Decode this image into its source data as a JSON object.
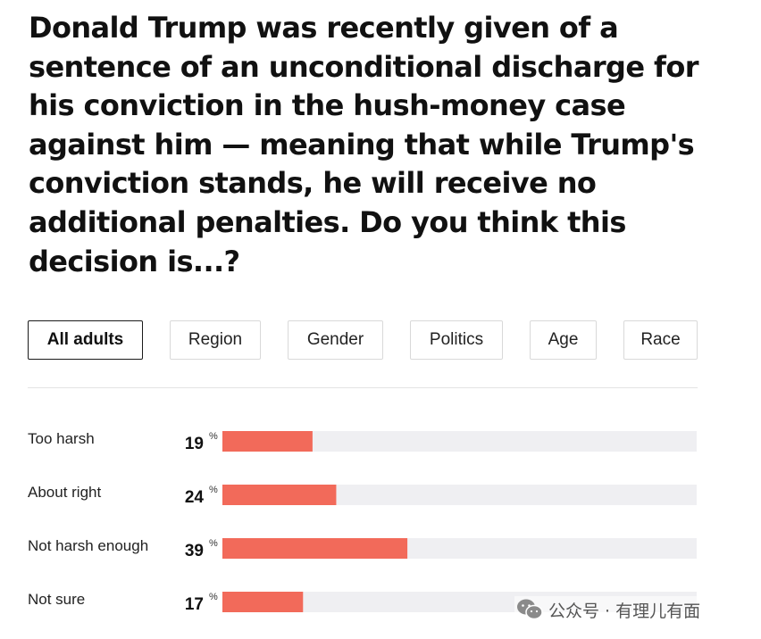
{
  "question": "Donald Trump was recently given of a sentence of an unconditional discharge for his conviction in the hush-money case against him — meaning that while Trump's conviction stands, he will receive no additional penalties. Do you think this decision is...?",
  "tabs": [
    {
      "label": "All adults",
      "active": true
    },
    {
      "label": "Region",
      "active": false
    },
    {
      "label": "Gender",
      "active": false
    },
    {
      "label": "Politics",
      "active": false
    },
    {
      "label": "Age",
      "active": false
    },
    {
      "label": "Race",
      "active": false
    }
  ],
  "chart_data": {
    "type": "bar",
    "orientation": "horizontal",
    "categories": [
      "Too harsh",
      "About right",
      "Not harsh enough",
      "Not sure"
    ],
    "values": [
      19,
      24,
      39,
      17
    ],
    "unit": "%",
    "xlim": [
      0,
      100
    ],
    "bar_color": "#f26a5a",
    "track_color": "#efeff2",
    "title": "",
    "xlabel": "",
    "ylabel": ""
  },
  "watermark": {
    "icon": "wechat-icon",
    "text": "公众号 · 有理儿有面"
  }
}
